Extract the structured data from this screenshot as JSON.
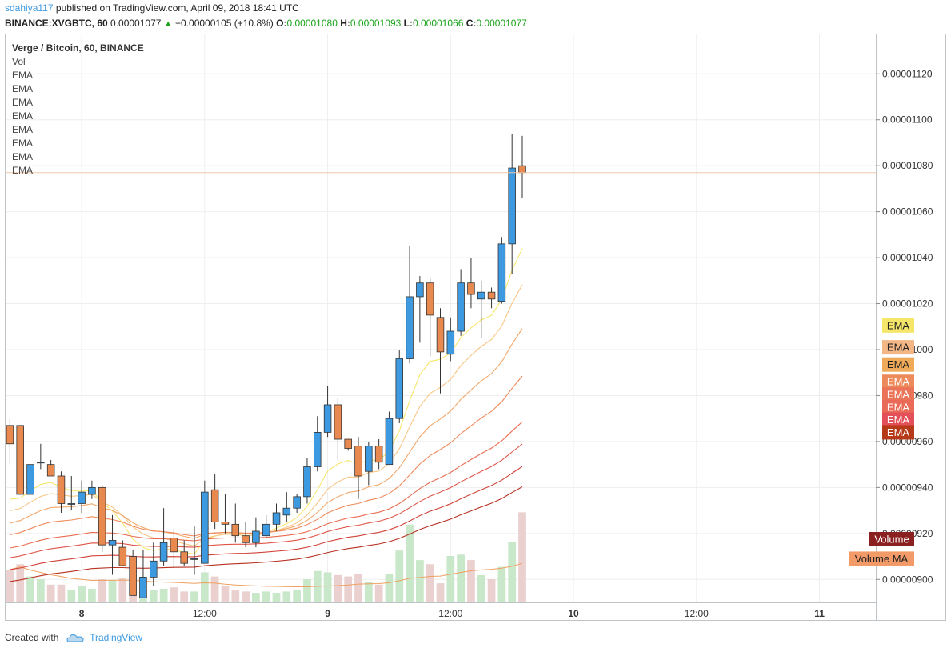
{
  "header": {
    "author": "sdahiya117",
    "published_text": "published on TradingView.com, April 09, 2018 18:41 UTC",
    "symbol": "BINANCE:XVGBTC, 60",
    "price": "0.00001077",
    "change_icon": "up-triangle-icon",
    "change": "+0.00000105 (+10.8%)",
    "o_label": "O:",
    "o_value": "0.00001080",
    "h_label": "H:",
    "h_value": "0.00001093",
    "l_label": "L:",
    "l_value": "0.00001066",
    "c_label": "C:",
    "c_value": "0.00001077"
  },
  "legend": {
    "title": "Verge / Bitcoin, 60, BINANCE",
    "items": [
      "Vol",
      "EMA",
      "EMA",
      "EMA",
      "EMA",
      "EMA",
      "EMA",
      "EMA",
      "EMA"
    ]
  },
  "footer": {
    "created_with": "Created with",
    "brand": "TradingView"
  },
  "colors": {
    "up_candle": "#3d9ae0",
    "down_candle": "#e8894f",
    "volume_up": "#c9e7c9",
    "volume_down": "#ead1cf",
    "vol_ma": "#f0a060",
    "grid": "#eeeeee"
  },
  "chart_data": {
    "type": "candlestick",
    "title": "Verge / Bitcoin, 60, BINANCE",
    "interval": "60",
    "ylim": [
      8.9e-06,
      1.1375e-05
    ],
    "y_ticks": [
      "0.00000900",
      "0.00000920",
      "0.00000940",
      "0.00000960",
      "0.00000980",
      "0.00001000",
      "0.00001020",
      "0.00001040",
      "0.00001060",
      "0.00001080",
      "0.00001100",
      "0.00001120"
    ],
    "x_tick_labels": [
      {
        "label": "8",
        "bar": 7
      },
      {
        "label": "12:00",
        "bar": 19
      },
      {
        "label": "9",
        "bar": 31
      },
      {
        "label": "12:00",
        "bar": 43
      },
      {
        "label": "10",
        "bar": 55
      },
      {
        "label": "12:00",
        "bar": 67
      },
      {
        "label": "11",
        "bar": 79
      }
    ],
    "bar_count_visible": 85,
    "last_price": 1.077e-05,
    "ohlc": [
      [
        9.67e-06,
        9.7e-06,
        9.5e-06,
        9.59e-06
      ],
      [
        9.67e-06,
        9.67e-06,
        9.37e-06,
        9.37e-06
      ],
      [
        9.37e-06,
        9.5e-06,
        9.37e-06,
        9.5e-06
      ],
      [
        9.51e-06,
        9.59e-06,
        9.48e-06,
        9.51e-06
      ],
      [
        9.5e-06,
        9.52e-06,
        9.45e-06,
        9.45e-06
      ],
      [
        9.45e-06,
        9.47e-06,
        9.29e-06,
        9.33e-06
      ],
      [
        9.33e-06,
        9.45e-06,
        9.3e-06,
        9.33e-06
      ],
      [
        9.33e-06,
        9.43e-06,
        9.29e-06,
        9.38e-06
      ],
      [
        9.37e-06,
        9.43e-06,
        9.35e-06,
        9.4e-06
      ],
      [
        9.4e-06,
        9.41e-06,
        9.12e-06,
        9.15e-06
      ],
      [
        9.15e-06,
        9.28e-06,
        9.02e-06,
        9.17e-06
      ],
      [
        9.14e-06,
        9.17e-06,
        9.06e-06,
        9.06e-06
      ],
      [
        9.1e-06,
        9.13e-06,
        8.93e-06,
        8.93e-06
      ],
      [
        8.92e-06,
        9.13e-06,
        8.92e-06,
        9.01e-06
      ],
      [
        9.01e-06,
        9.16e-06,
        8.97e-06,
        9.08e-06
      ],
      [
        9.08e-06,
        9.31e-06,
        9.06e-06,
        9.16e-06
      ],
      [
        9.18e-06,
        9.22e-06,
        9.05e-06,
        9.12e-06
      ],
      [
        9.12e-06,
        9.17e-06,
        9.06e-06,
        9.07e-06
      ],
      [
        9.09e-06,
        9.23e-06,
        9.02e-06,
        9.09e-06
      ],
      [
        9.07e-06,
        9.43e-06,
        9.07e-06,
        9.38e-06
      ],
      [
        9.39e-06,
        9.46e-06,
        9.22e-06,
        9.25e-06
      ],
      [
        9.25e-06,
        9.37e-06,
        9.2e-06,
        9.24e-06
      ],
      [
        9.24e-06,
        9.33e-06,
        9.16e-06,
        9.19e-06
      ],
      [
        9.19e-06,
        9.25e-06,
        9.14e-06,
        9.16e-06
      ],
      [
        9.16e-06,
        9.27e-06,
        9.14e-06,
        9.21e-06
      ],
      [
        9.19e-06,
        9.28e-06,
        9.18e-06,
        9.24e-06
      ],
      [
        9.24e-06,
        9.33e-06,
        9.21e-06,
        9.29e-06
      ],
      [
        9.28e-06,
        9.38e-06,
        9.25e-06,
        9.31e-06
      ],
      [
        9.31e-06,
        9.37e-06,
        9.29e-06,
        9.36e-06
      ],
      [
        9.36e-06,
        9.53e-06,
        9.33e-06,
        9.49e-06
      ],
      [
        9.49e-06,
        9.71e-06,
        9.47e-06,
        9.64e-06
      ],
      [
        9.64e-06,
        9.84e-06,
        9.62e-06,
        9.76e-06
      ],
      [
        9.76e-06,
        9.79e-06,
        9.52e-06,
        9.61e-06
      ],
      [
        9.61e-06,
        9.61e-06,
        9.56e-06,
        9.57e-06
      ],
      [
        9.58e-06,
        9.62e-06,
        9.35e-06,
        9.45e-06
      ],
      [
        9.47e-06,
        9.6e-06,
        9.41e-06,
        9.58e-06
      ],
      [
        9.58e-06,
        9.61e-06,
        9.48e-06,
        9.51e-06
      ],
      [
        9.5e-06,
        9.73e-06,
        9.5e-06,
        9.7e-06
      ],
      [
        9.7e-06,
        1e-05,
        9.68e-06,
        9.96e-06
      ],
      [
        9.96e-06,
        1.045e-05,
        9.94e-06,
        1.023e-05
      ],
      [
        1.023e-05,
        1.032e-05,
        1.003e-05,
        1.029e-05
      ],
      [
        1.029e-05,
        1.031e-05,
        9.97e-06,
        1.015e-05
      ],
      [
        1.014e-05,
        1.018e-05,
        9.81e-06,
        9.99e-06
      ],
      [
        9.98e-06,
        1.014e-05,
        9.95e-06,
        1.008e-05
      ],
      [
        1.008e-05,
        1.035e-05,
        1.006e-05,
        1.029e-05
      ],
      [
        1.029e-05,
        1.04e-05,
        1.018e-05,
        1.024e-05
      ],
      [
        1.022e-05,
        1.03e-05,
        1.005e-05,
        1.025e-05
      ],
      [
        1.025e-05,
        1.027e-05,
        1.018e-05,
        1.022e-05
      ],
      [
        1.021e-05,
        1.049e-05,
        1.02e-05,
        1.046e-05
      ],
      [
        1.046e-05,
        1.094e-05,
        1.033e-05,
        1.079e-05
      ],
      [
        1.08e-05,
        1.093e-05,
        1.066e-05,
        1.077e-05
      ]
    ],
    "volume": [
      0.24,
      0.28,
      0.19,
      0.17,
      0.13,
      0.13,
      0.09,
      0.12,
      0.1,
      0.17,
      0.16,
      0.18,
      0.14,
      0.09,
      0.09,
      0.1,
      0.11,
      0.08,
      0.08,
      0.22,
      0.19,
      0.12,
      0.09,
      0.08,
      0.07,
      0.08,
      0.07,
      0.08,
      0.09,
      0.17,
      0.23,
      0.22,
      0.2,
      0.19,
      0.21,
      0.15,
      0.13,
      0.21,
      0.38,
      0.57,
      0.31,
      0.28,
      0.14,
      0.34,
      0.35,
      0.31,
      0.2,
      0.17,
      0.26,
      0.44,
      0.66
    ],
    "ema_colors": [
      "#f5e66a",
      "#f7c684",
      "#f3a668",
      "#ef8a5a",
      "#e96c50",
      "#e05548",
      "#d14236",
      "#b83120"
    ],
    "indicator_labels": [
      {
        "text": "EMA",
        "bg": "#f5e66a",
        "color": "#222222",
        "price": 1.0105e-05
      },
      {
        "text": "EMA",
        "bg": "#f3b785",
        "color": "#222222",
        "price": 1.001e-05
      },
      {
        "text": "EMA",
        "bg": "#efaa59",
        "color": "#222222",
        "price": 9.935e-06
      },
      {
        "text": "EMA",
        "bg": "#ed8a5b",
        "color": "#ffffff",
        "price": 9.86e-06
      },
      {
        "text": "EMA",
        "bg": "#ea7458",
        "color": "#ffffff",
        "price": 9.805e-06
      },
      {
        "text": "EMA",
        "bg": "#e96a57",
        "color": "#ffffff",
        "price": 9.75e-06
      },
      {
        "text": "EMA",
        "bg": "#e4505a",
        "color": "#ffffff",
        "price": 9.695e-06
      },
      {
        "text": "EMA",
        "bg": "#b63a18",
        "color": "#ffffff",
        "price": 9.64e-06
      },
      {
        "text": "Volume",
        "bg": "#8a2020",
        "color": "#ffffff",
        "price": 9.175e-06
      },
      {
        "text": "Volume MA",
        "bg": "#f29a68",
        "color": "#222222",
        "price": 9.09e-06
      }
    ]
  }
}
